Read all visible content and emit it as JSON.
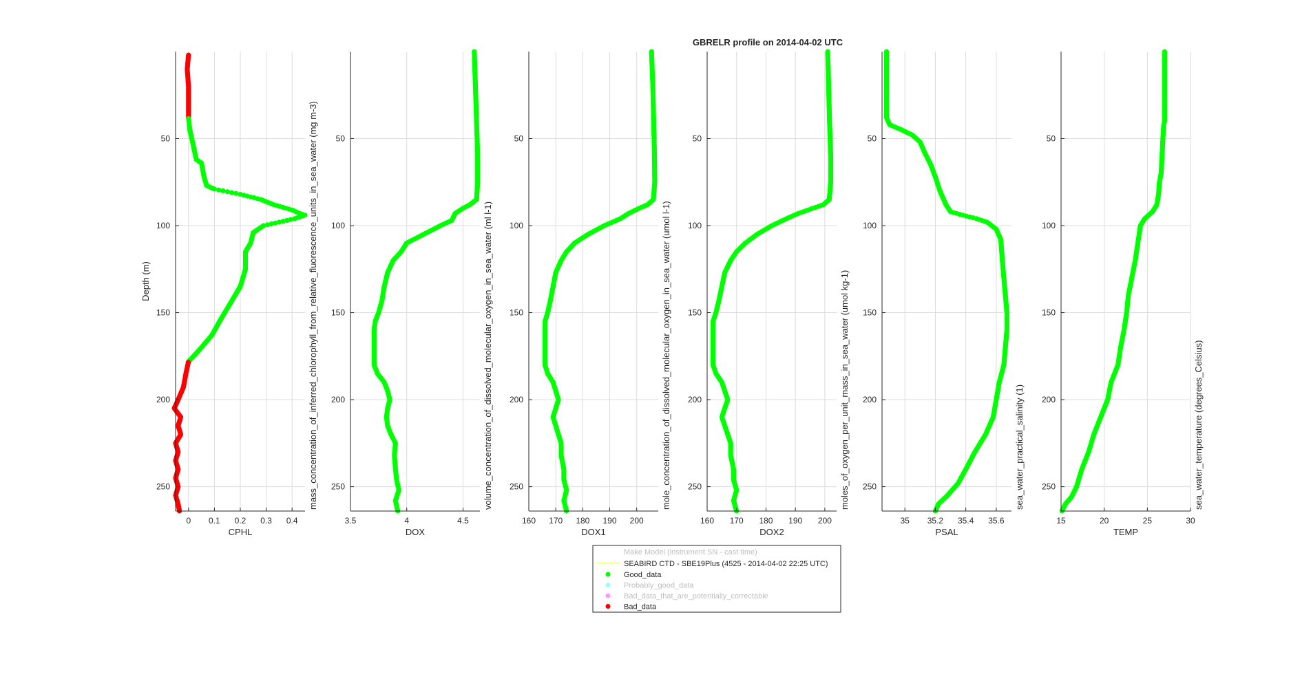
{
  "figure": {
    "title": "GBRELR profile on 2014-04-02 UTC",
    "ylabel": "Depth (m)",
    "colors": {
      "good": "#00ff00",
      "probably_good": "#99ffff",
      "bad_correctable": "#ff99ff",
      "bad": "#ff0000",
      "grid": "#dcdcdc",
      "axis": "#262626"
    }
  },
  "chart_data": [
    {
      "type": "scatter",
      "xlabel": "CPHL",
      "side_label": "mass_concentration_of_inferred_chlorophyll_from_relative_fluorescence_units_in_sea_water (mg m-3)",
      "xlim": [
        -0.05,
        0.45
      ],
      "ylim": [
        264,
        0
      ],
      "grid": true,
      "xticks": [
        0,
        0.1,
        0.2,
        0.3,
        0.4
      ],
      "xtick_labels": [
        "0",
        "0.1",
        "0.2",
        "0.3",
        "0.4"
      ],
      "yticks": [
        50,
        100,
        150,
        200,
        250
      ],
      "ytick_labels": [
        "50",
        "100",
        "150",
        "200",
        "250"
      ],
      "profile": [
        [
          2,
          0.0
        ],
        [
          10,
          -0.005
        ],
        [
          20,
          0.0
        ],
        [
          30,
          0.0
        ],
        [
          38,
          0.0
        ],
        [
          45,
          0.005
        ],
        [
          55,
          0.02
        ],
        [
          62,
          0.03
        ],
        [
          64,
          0.05
        ],
        [
          72,
          0.06
        ],
        [
          77,
          0.07
        ],
        [
          79,
          0.1
        ],
        [
          82,
          0.2
        ],
        [
          85,
          0.28
        ],
        [
          88,
          0.33
        ],
        [
          91,
          0.4
        ],
        [
          93,
          0.43
        ],
        [
          94,
          0.45
        ],
        [
          96,
          0.41
        ],
        [
          98,
          0.35
        ],
        [
          100,
          0.29
        ],
        [
          104,
          0.25
        ],
        [
          110,
          0.24
        ],
        [
          115,
          0.22
        ],
        [
          120,
          0.22
        ],
        [
          125,
          0.22
        ],
        [
          135,
          0.2
        ],
        [
          140,
          0.18
        ],
        [
          145,
          0.16
        ],
        [
          150,
          0.14
        ],
        [
          155,
          0.12
        ],
        [
          163,
          0.09
        ],
        [
          170,
          0.05
        ],
        [
          175,
          0.02
        ],
        [
          178,
          0.0
        ],
        [
          185,
          -0.01
        ],
        [
          193,
          -0.02
        ],
        [
          200,
          -0.04
        ],
        [
          205,
          -0.055
        ],
        [
          210,
          -0.03
        ],
        [
          215,
          -0.04
        ],
        [
          220,
          -0.03
        ],
        [
          225,
          -0.05
        ],
        [
          230,
          -0.04
        ],
        [
          235,
          -0.05
        ],
        [
          240,
          -0.04
        ],
        [
          245,
          -0.05
        ],
        [
          250,
          -0.04
        ],
        [
          255,
          -0.05
        ],
        [
          260,
          -0.04
        ],
        [
          264,
          -0.035
        ]
      ],
      "flags": [
        [
          0,
          38,
          "bad"
        ],
        [
          38,
          178,
          "good"
        ],
        [
          178,
          264,
          "bad"
        ]
      ]
    },
    {
      "type": "scatter",
      "xlabel": "DOX",
      "side_label": "volume_concentration_of_dissolved_molecular_oxygen_in_sea_water (ml l-1)",
      "xlim": [
        3.5,
        4.65
      ],
      "ylim": [
        264,
        0
      ],
      "grid": true,
      "xticks": [
        3.5,
        4,
        4.5
      ],
      "xtick_labels": [
        "3.5",
        "4",
        "4.5"
      ],
      "yticks": [
        50,
        100,
        150,
        200,
        250
      ],
      "ytick_labels": [
        "50",
        "100",
        "150",
        "200",
        "250"
      ],
      "profile": [
        [
          0,
          4.6
        ],
        [
          20,
          4.61
        ],
        [
          40,
          4.62
        ],
        [
          60,
          4.63
        ],
        [
          75,
          4.63
        ],
        [
          85,
          4.62
        ],
        [
          88,
          4.56
        ],
        [
          90,
          4.5
        ],
        [
          93,
          4.43
        ],
        [
          97,
          4.4
        ],
        [
          100,
          4.3
        ],
        [
          105,
          4.15
        ],
        [
          110,
          4.0
        ],
        [
          115,
          3.95
        ],
        [
          120,
          3.88
        ],
        [
          127,
          3.83
        ],
        [
          135,
          3.8
        ],
        [
          143,
          3.78
        ],
        [
          150,
          3.75
        ],
        [
          155,
          3.72
        ],
        [
          160,
          3.71
        ],
        [
          170,
          3.71
        ],
        [
          180,
          3.71
        ],
        [
          185,
          3.74
        ],
        [
          190,
          3.8
        ],
        [
          195,
          3.83
        ],
        [
          200,
          3.85
        ],
        [
          205,
          3.83
        ],
        [
          210,
          3.82
        ],
        [
          215,
          3.83
        ],
        [
          220,
          3.86
        ],
        [
          225,
          3.9
        ],
        [
          232,
          3.89
        ],
        [
          240,
          3.9
        ],
        [
          246,
          3.91
        ],
        [
          252,
          3.93
        ],
        [
          258,
          3.9
        ],
        [
          264,
          3.92
        ]
      ],
      "flags": [
        [
          0,
          264,
          "good"
        ]
      ]
    },
    {
      "type": "scatter",
      "xlabel": "DOX1",
      "side_label": "mole_concentration_of_dissolved_molecular_oxygen_in_sea_water (umol l-1)",
      "xlim": [
        160,
        208
      ],
      "ylim": [
        264,
        0
      ],
      "grid": true,
      "xticks": [
        160,
        170,
        180,
        190,
        200
      ],
      "xtick_labels": [
        "160",
        "170",
        "180",
        "190",
        "200"
      ],
      "yticks": [
        50,
        100,
        150,
        200,
        250
      ],
      "ytick_labels": [
        "50",
        "100",
        "150",
        "200",
        "250"
      ],
      "profile": [
        [
          0,
          205.5
        ],
        [
          20,
          206
        ],
        [
          40,
          206.3
        ],
        [
          60,
          206.6
        ],
        [
          75,
          206.7
        ],
        [
          85,
          206.2
        ],
        [
          88,
          204
        ],
        [
          90,
          201
        ],
        [
          93,
          197
        ],
        [
          96,
          194
        ],
        [
          100,
          188
        ],
        [
          105,
          182
        ],
        [
          110,
          177
        ],
        [
          115,
          174
        ],
        [
          120,
          172
        ],
        [
          127,
          170
        ],
        [
          135,
          169
        ],
        [
          143,
          168
        ],
        [
          150,
          167
        ],
        [
          155,
          166
        ],
        [
          160,
          166
        ],
        [
          170,
          166
        ],
        [
          180,
          166
        ],
        [
          185,
          167
        ],
        [
          190,
          169
        ],
        [
          195,
          170
        ],
        [
          200,
          171
        ],
        [
          205,
          170
        ],
        [
          210,
          169
        ],
        [
          215,
          170
        ],
        [
          220,
          171
        ],
        [
          225,
          172
        ],
        [
          232,
          172
        ],
        [
          240,
          173
        ],
        [
          246,
          173
        ],
        [
          252,
          174
        ],
        [
          258,
          173
        ],
        [
          264,
          174
        ]
      ],
      "flags": [
        [
          0,
          264,
          "good"
        ]
      ]
    },
    {
      "type": "scatter",
      "xlabel": "DOX2",
      "side_label": "moles_of_oxygen_per_unit_mass_in_sea_water (umol kg-1)",
      "xlim": [
        160,
        204
      ],
      "ylim": [
        264,
        0
      ],
      "grid": true,
      "xticks": [
        160,
        170,
        180,
        190,
        200
      ],
      "xtick_labels": [
        "160",
        "170",
        "180",
        "190",
        "200"
      ],
      "yticks": [
        50,
        100,
        150,
        200,
        250
      ],
      "ytick_labels": [
        "50",
        "100",
        "150",
        "200",
        "250"
      ],
      "profile": [
        [
          0,
          201
        ],
        [
          20,
          201.3
        ],
        [
          40,
          201.6
        ],
        [
          60,
          202
        ],
        [
          75,
          202
        ],
        [
          85,
          201.5
        ],
        [
          88,
          199.5
        ],
        [
          90,
          196
        ],
        [
          93,
          191
        ],
        [
          96,
          187
        ],
        [
          100,
          182
        ],
        [
          105,
          177
        ],
        [
          110,
          173
        ],
        [
          115,
          170
        ],
        [
          120,
          168
        ],
        [
          127,
          166
        ],
        [
          135,
          165
        ],
        [
          143,
          164
        ],
        [
          150,
          163
        ],
        [
          155,
          162
        ],
        [
          160,
          162
        ],
        [
          170,
          162
        ],
        [
          180,
          162
        ],
        [
          185,
          163
        ],
        [
          190,
          165
        ],
        [
          195,
          166
        ],
        [
          200,
          167
        ],
        [
          205,
          166
        ],
        [
          210,
          165
        ],
        [
          215,
          166
        ],
        [
          220,
          167
        ],
        [
          225,
          168
        ],
        [
          232,
          168
        ],
        [
          240,
          169
        ],
        [
          246,
          169
        ],
        [
          252,
          170
        ],
        [
          258,
          169
        ],
        [
          264,
          170
        ]
      ],
      "flags": [
        [
          0,
          264,
          "good"
        ]
      ]
    },
    {
      "type": "scatter",
      "xlabel": "PSAL",
      "side_label": "sea_water_practical_salinity (1)",
      "xlim": [
        34.85,
        35.7
      ],
      "ylim": [
        264,
        0
      ],
      "grid": true,
      "xticks": [
        35,
        35.2,
        35.4,
        35.6
      ],
      "xtick_labels": [
        "35",
        "35.2",
        "35.4",
        "35.6"
      ],
      "yticks": [
        50,
        100,
        150,
        200,
        250
      ],
      "ytick_labels": [
        "50",
        "100",
        "150",
        "200",
        "250"
      ],
      "profile": [
        [
          0,
          34.88
        ],
        [
          20,
          34.88
        ],
        [
          38,
          34.88
        ],
        [
          42,
          34.9
        ],
        [
          45,
          34.98
        ],
        [
          48,
          35.05
        ],
        [
          52,
          35.1
        ],
        [
          58,
          35.13
        ],
        [
          65,
          35.17
        ],
        [
          72,
          35.2
        ],
        [
          80,
          35.23
        ],
        [
          88,
          35.27
        ],
        [
          92,
          35.3
        ],
        [
          94,
          35.38
        ],
        [
          96,
          35.47
        ],
        [
          98,
          35.54
        ],
        [
          102,
          35.6
        ],
        [
          108,
          35.63
        ],
        [
          120,
          35.64
        ],
        [
          130,
          35.65
        ],
        [
          140,
          35.66
        ],
        [
          150,
          35.67
        ],
        [
          160,
          35.67
        ],
        [
          170,
          35.66
        ],
        [
          180,
          35.65
        ],
        [
          190,
          35.62
        ],
        [
          200,
          35.6
        ],
        [
          210,
          35.58
        ],
        [
          220,
          35.53
        ],
        [
          230,
          35.46
        ],
        [
          240,
          35.4
        ],
        [
          248,
          35.35
        ],
        [
          255,
          35.28
        ],
        [
          260,
          35.22
        ],
        [
          264,
          35.2
        ]
      ],
      "flags": [
        [
          0,
          264,
          "good"
        ]
      ]
    },
    {
      "type": "scatter",
      "xlabel": "TEMP",
      "side_label": "sea_water_temperature (degrees_Celsius)",
      "xlim": [
        15,
        30
      ],
      "ylim": [
        264,
        0
      ],
      "grid": true,
      "xticks": [
        15,
        20,
        25,
        30
      ],
      "xtick_labels": [
        "15",
        "20",
        "25",
        "30"
      ],
      "yticks": [
        50,
        100,
        150,
        200,
        250
      ],
      "ytick_labels": [
        "50",
        "100",
        "150",
        "200",
        "250"
      ],
      "profile": [
        [
          0,
          27.0
        ],
        [
          20,
          27.0
        ],
        [
          40,
          27.0
        ],
        [
          42,
          26.9
        ],
        [
          50,
          26.8
        ],
        [
          60,
          26.7
        ],
        [
          70,
          26.6
        ],
        [
          75,
          26.4
        ],
        [
          82,
          26.3
        ],
        [
          88,
          26.1
        ],
        [
          92,
          25.6
        ],
        [
          96,
          24.7
        ],
        [
          100,
          24.2
        ],
        [
          110,
          23.9
        ],
        [
          120,
          23.6
        ],
        [
          130,
          23.2
        ],
        [
          140,
          22.8
        ],
        [
          150,
          22.6
        ],
        [
          160,
          22.3
        ],
        [
          170,
          21.9
        ],
        [
          180,
          21.6
        ],
        [
          190,
          20.8
        ],
        [
          200,
          20.4
        ],
        [
          210,
          19.6
        ],
        [
          220,
          18.8
        ],
        [
          230,
          18.2
        ],
        [
          240,
          17.4
        ],
        [
          250,
          16.8
        ],
        [
          256,
          16.2
        ],
        [
          260,
          15.5
        ],
        [
          264,
          15.1
        ]
      ],
      "flags": [
        [
          0,
          264,
          "good"
        ]
      ]
    }
  ],
  "legend": {
    "title": "Make Model (instrument SN - cast time)",
    "instrument": "SEABIRD CTD - SBE19Plus (4525 - 2014-04-02 22:25 UTC)",
    "instrument_color": "#ffff00",
    "items": [
      {
        "label": "Good_data",
        "color": "#00ff00",
        "active": true
      },
      {
        "label": "Probably_good_data",
        "color": "#99ffff",
        "active": false
      },
      {
        "label": "Bad_data_that_are_potentially_correctable",
        "color": "#ff99ff",
        "active": false
      },
      {
        "label": "Bad_data",
        "color": "#ff0000",
        "active": true
      }
    ]
  }
}
